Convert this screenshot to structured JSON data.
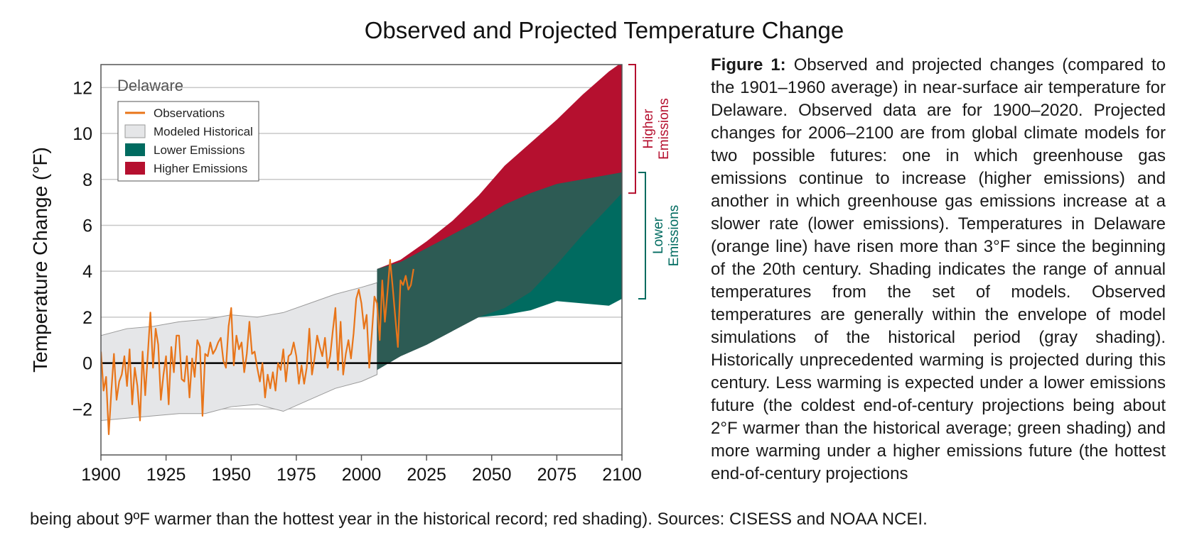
{
  "chart_data": {
    "type": "area",
    "title": "Observed and Projected Temperature Change",
    "ylabel": "Temperature Change (°F)",
    "xlabel": "",
    "region_label": "Delaware",
    "xlim": [
      1900,
      2100
    ],
    "ylim": [
      -4,
      13
    ],
    "grid": true,
    "legend_position": "top-left",
    "x_ticks": [
      "1900",
      "1925",
      "1950",
      "1975",
      "2000",
      "2025",
      "2050",
      "2075",
      "2100"
    ],
    "y_ticks": [
      "12",
      "10",
      "8",
      "6",
      "4",
      "2",
      "0",
      "−2"
    ],
    "legend": [
      {
        "label": "Observations",
        "color": "#e8751a",
        "kind": "line"
      },
      {
        "label": "Modeled Historical",
        "color": "#e5e6e8",
        "kind": "box"
      },
      {
        "label": "Lower Emissions",
        "color": "#006b60",
        "kind": "box"
      },
      {
        "label": "Higher Emissions",
        "color": "#b5102f",
        "kind": "box"
      }
    ],
    "series": [
      {
        "name": "Modeled Historical",
        "color": "#e5e6e8",
        "x": [
          1900,
          1910,
          1920,
          1930,
          1940,
          1950,
          1960,
          1970,
          1980,
          1990,
          2000,
          2006
        ],
        "upper": [
          1.2,
          1.5,
          1.6,
          1.8,
          1.9,
          2.1,
          2.0,
          2.2,
          2.6,
          3.0,
          3.3,
          3.5
        ],
        "lower": [
          -2.5,
          -2.4,
          -2.3,
          -2.2,
          -2.2,
          -1.9,
          -1.8,
          -2.1,
          -1.6,
          -1.1,
          -0.8,
          -0.5
        ]
      },
      {
        "name": "Lower Emissions",
        "color": "#006b60",
        "x": [
          2006,
          2015,
          2025,
          2035,
          2045,
          2055,
          2065,
          2075,
          2085,
          2095,
          2100
        ],
        "upper": [
          4.1,
          4.4,
          5.0,
          5.6,
          6.2,
          6.9,
          7.4,
          7.8,
          8.0,
          8.2,
          8.3
        ],
        "lower": [
          -0.3,
          0.3,
          0.8,
          1.4,
          2.0,
          2.1,
          2.3,
          2.7,
          2.6,
          2.5,
          2.8
        ]
      },
      {
        "name": "Higher Emissions",
        "color": "#b5102f",
        "x": [
          2006,
          2015,
          2025,
          2035,
          2045,
          2055,
          2065,
          2075,
          2085,
          2095,
          2100
        ],
        "upper": [
          4.1,
          4.5,
          5.3,
          6.2,
          7.3,
          8.6,
          9.6,
          10.6,
          11.7,
          12.7,
          13.1
        ],
        "lower": [
          -0.3,
          0.3,
          0.8,
          1.4,
          2.0,
          2.4,
          3.1,
          4.3,
          5.6,
          6.8,
          7.4
        ]
      },
      {
        "name": "Observations",
        "color": "#e8751a",
        "x": [
          1900,
          1901,
          1902,
          1903,
          1904,
          1905,
          1906,
          1907,
          1908,
          1909,
          1910,
          1911,
          1912,
          1913,
          1914,
          1915,
          1916,
          1917,
          1918,
          1919,
          1920,
          1921,
          1922,
          1923,
          1924,
          1925,
          1926,
          1927,
          1928,
          1929,
          1930,
          1931,
          1932,
          1933,
          1934,
          1935,
          1936,
          1937,
          1938,
          1939,
          1940,
          1941,
          1942,
          1943,
          1944,
          1945,
          1946,
          1947,
          1948,
          1949,
          1950,
          1951,
          1952,
          1953,
          1954,
          1955,
          1956,
          1957,
          1958,
          1959,
          1960,
          1961,
          1962,
          1963,
          1964,
          1965,
          1966,
          1967,
          1968,
          1969,
          1970,
          1971,
          1972,
          1973,
          1974,
          1975,
          1976,
          1977,
          1978,
          1979,
          1980,
          1981,
          1982,
          1983,
          1984,
          1985,
          1986,
          1987,
          1988,
          1989,
          1990,
          1991,
          1992,
          1993,
          1994,
          1995,
          1996,
          1997,
          1998,
          1999,
          2000,
          2001,
          2002,
          2003,
          2004,
          2005,
          2006,
          2007,
          2008,
          2009,
          2010,
          2011,
          2012,
          2013,
          2014,
          2015,
          2016,
          2017,
          2018,
          2019,
          2020
        ],
        "values": [
          0.5,
          -1.2,
          -0.6,
          -3.1,
          -1.2,
          0.4,
          -1.6,
          -0.8,
          -0.5,
          0.3,
          -1.0,
          0.6,
          -1.8,
          -0.2,
          -1.0,
          -2.5,
          0.5,
          -1.4,
          0.4,
          2.2,
          -0.2,
          1.5,
          0.8,
          -1.6,
          -0.5,
          0.3,
          -1.8,
          0.7,
          -0.4,
          1.2,
          1.2,
          -0.7,
          -0.8,
          0.3,
          -1.5,
          0.2,
          -0.6,
          1.0,
          0.7,
          -2.3,
          0.4,
          0.3,
          0.9,
          0.4,
          0.6,
          0.9,
          1.1,
          0.1,
          -0.2,
          1.6,
          2.4,
          -0.1,
          1.2,
          0.6,
          0.9,
          -0.4,
          0.4,
          1.8,
          0.4,
          0.5,
          -0.2,
          -0.8,
          0.0,
          -1.5,
          -0.5,
          -1.1,
          -0.4,
          -1.2,
          0.0,
          -0.3,
          0.6,
          -0.8,
          0.3,
          0.4,
          0.9,
          0.3,
          -0.9,
          -0.1,
          -0.9,
          -0.2,
          1.5,
          -0.5,
          0.2,
          1.2,
          0.7,
          0.3,
          1.1,
          -0.2,
          0.3,
          1.4,
          2.4,
          -0.3,
          1.8,
          -0.5,
          0.4,
          1.0,
          0.2,
          1.3,
          2.8,
          3.2,
          2.6,
          1.5,
          2.1,
          -0.2,
          1.3,
          2.9,
          2.6,
          1.0,
          3.6,
          1.8,
          3.1,
          4.5,
          3.3,
          2.0,
          0.7,
          3.6,
          3.4,
          3.8,
          3.2,
          3.4,
          4.1
        ]
      }
    ],
    "annotations": [
      {
        "label": "Higher\nEmissions",
        "color": "#b5102f",
        "range": [
          7.4,
          13.0
        ]
      },
      {
        "label": "Lower\nEmissions",
        "color": "#006b60",
        "range": [
          2.8,
          8.3
        ]
      }
    ]
  },
  "caption": {
    "lead": "Figure 1:",
    "body": " Observed and projected changes (compared to the 1901–1960 average) in near-surface air temperature for Delaware. Observed data are for 1900–2020. Projected changes for 2006–2100 are from global climate models for two possible futures: one in which greenhouse gas emissions continue to increase (higher emissions) and another in which greenhouse gas emissions increase at a slower rate (lower emissions). Temperatures in Delaware (orange line) have risen more than 3°F since the beginning of the 20th century. Shading indicates the range of annual temperatures from the set of models. Observed temperatures are generally within the envelope of model simulations of the historical period (gray shading). Historically unprecedented warming is projected during this century. Less warming is expected under a lower emissions future (the coldest end-of-century projections being about 2°F warmer than the historical average; green shading) and more warming under a higher emissions future (the hottest end-of-century projections",
    "tail": "being about 9ºF warmer than the hottest year in the historical record; red shading). Sources: CISESS and NOAA NCEI."
  }
}
